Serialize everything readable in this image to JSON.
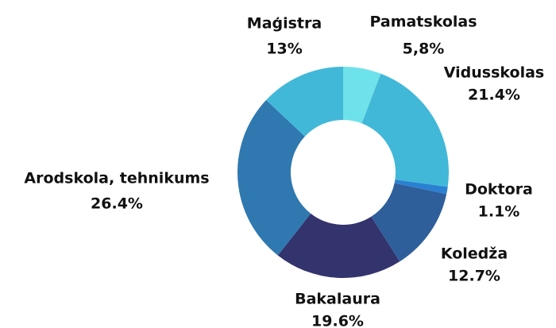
{
  "chart_data": {
    "type": "donut",
    "categories": [
      "Pamatskolas",
      "Vidusskolas",
      "Doktora",
      "Koledža",
      "Bakalaura",
      "Arodskola, tehnikums",
      "Maģistra"
    ],
    "values": [
      5.8,
      21.4,
      1.1,
      12.7,
      19.6,
      26.4,
      13
    ],
    "value_labels": [
      "5,8%",
      "21.4%",
      "1.1%",
      "12.7%",
      "19.6%",
      "26.4%",
      "13%"
    ],
    "colors": [
      "#6ee2ea",
      "#42b8d8",
      "#2a80d2",
      "#2e5f9a",
      "#33336e",
      "#2f78b0",
      "#42b8d8"
    ]
  }
}
